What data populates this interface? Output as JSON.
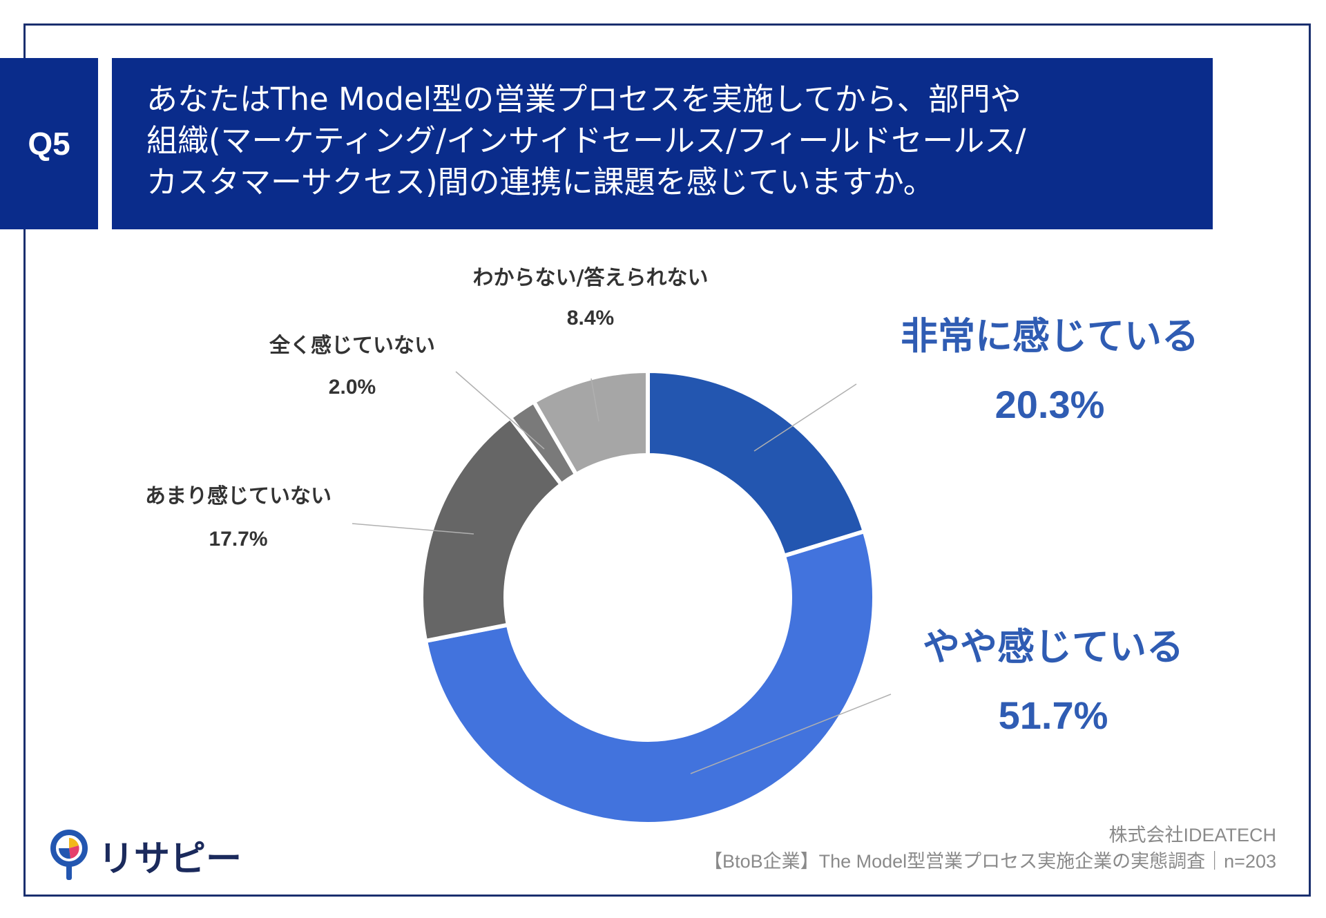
{
  "question": {
    "number": "Q5",
    "lines": [
      "あなたはThe Model型の営業プロセスを実施してから、部門や",
      "組織(マーケティング/インサイドセールス/フィールドセールス/",
      "カスタマーサクセス)間の連携に課題を感じていますか。"
    ]
  },
  "colors": {
    "frame": "#1a2f6e",
    "header_bg": "#0a2c8b",
    "label_blue": "#2f5cb3",
    "label_gray": "#333333"
  },
  "chart_data": {
    "type": "pie",
    "donut": true,
    "start": "12 o'clock",
    "direction": "clockwise",
    "slices": [
      {
        "label": "非常に感じている",
        "value": 20.3,
        "display": "20.3%",
        "color": "#2356b0",
        "emphasis": true
      },
      {
        "label": "やや感じている",
        "value": 51.7,
        "display": "51.7%",
        "color": "#4273dd",
        "emphasis": true
      },
      {
        "label": "あまり感じていない",
        "value": 17.7,
        "display": "17.7%",
        "color": "#666666",
        "emphasis": false
      },
      {
        "label": "全く感じていない",
        "value": 2.0,
        "display": "2.0%",
        "color": "#7a7a7a",
        "emphasis": false
      },
      {
        "label": "わからない/答えられない",
        "value": 8.4,
        "display": "8.4%",
        "color": "#a6a6a6",
        "emphasis": false
      }
    ]
  },
  "footer": {
    "company": "株式会社IDEATECH",
    "survey": "【BtoB企業】The Model型営業プロセス実施企業の実態調査｜n=203"
  },
  "brand": {
    "name": "リサピー"
  }
}
